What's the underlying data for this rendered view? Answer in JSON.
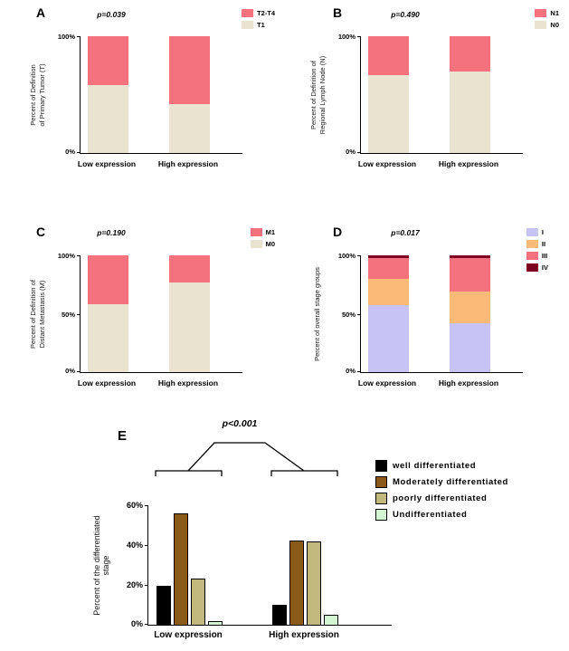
{
  "chart_data": [
    {
      "panel_label": "A",
      "type": "stacked_bar",
      "p_value": "p=0.039",
      "ylabel": "Percent of Definition of Primary Tumor (T)",
      "ylabel_lines": [
        "Percent of Definition",
        "of Primary Tumor (T)"
      ],
      "categories": [
        "Low expression",
        "High expression"
      ],
      "series": [
        {
          "name": "T1",
          "color": "#E9E3CF",
          "values": [
            58,
            42
          ]
        },
        {
          "name": "T2-T4",
          "color": "#F4717E",
          "values": [
            42,
            58
          ]
        }
      ],
      "legend": [
        {
          "label": "T2-T4",
          "color": "#F4717E"
        },
        {
          "label": "T1",
          "color": "#E9E3CF"
        }
      ],
      "ylim": [
        0,
        100
      ],
      "ytick_labels": [
        "100%",
        "0%"
      ],
      "legend_position": "top-right",
      "grid": false
    },
    {
      "panel_label": "B",
      "type": "stacked_bar",
      "p_value": "p=0.490",
      "ylabel": "Percent of Definition of Regional Lymph Node (N)",
      "ylabel_lines": [
        "Percent of Definition of",
        "Regional Lymph Node (N)"
      ],
      "categories": [
        "Low expression",
        "High expression"
      ],
      "series": [
        {
          "name": "N0",
          "color": "#E9E3CF",
          "values": [
            67,
            70
          ]
        },
        {
          "name": "N1",
          "color": "#F4717E",
          "values": [
            33,
            30
          ]
        }
      ],
      "legend": [
        {
          "label": "N1",
          "color": "#F4717E"
        },
        {
          "label": "N0",
          "color": "#E9E3CF"
        }
      ],
      "ylim": [
        0,
        100
      ],
      "ytick_labels": [
        "100%",
        "0%"
      ],
      "legend_position": "top-right",
      "grid": false
    },
    {
      "panel_label": "C",
      "type": "stacked_bar",
      "p_value": "p=0.190",
      "ylabel": "Percent of Definition of Distant Metastasis (M)",
      "ylabel_lines": [
        "Percent of Definition of",
        "Distant Metastasis (M)"
      ],
      "categories": [
        "Low expression",
        "High expression"
      ],
      "series": [
        {
          "name": "M0",
          "color": "#E9E3CF",
          "values": [
            58,
            77
          ]
        },
        {
          "name": "M1",
          "color": "#F4717E",
          "values": [
            42,
            23
          ]
        }
      ],
      "legend": [
        {
          "label": "M1",
          "color": "#F4717E"
        },
        {
          "label": "M0",
          "color": "#E9E3CF"
        }
      ],
      "ylim": [
        0,
        100
      ],
      "ytick_labels": [
        "100%",
        "50%",
        "0%"
      ],
      "legend_position": "top-right",
      "grid": false
    },
    {
      "panel_label": "D",
      "type": "stacked_bar",
      "p_value": "p=0.017",
      "ylabel": "Percent of overall stage groups",
      "ylabel_lines": [
        "Percent of overall stage groups"
      ],
      "categories": [
        "Low expression",
        "High expression"
      ],
      "series": [
        {
          "name": "I",
          "color": "#C7C3F4",
          "values": [
            57,
            42
          ]
        },
        {
          "name": "II",
          "color": "#FBBB78",
          "values": [
            23,
            27
          ]
        },
        {
          "name": "III",
          "color": "#F4717E",
          "values": [
            18,
            29
          ]
        },
        {
          "name": "IV",
          "color": "#7E0020",
          "values": [
            2,
            2
          ]
        }
      ],
      "legend": [
        {
          "label": "I",
          "color": "#C7C3F4"
        },
        {
          "label": "II",
          "color": "#FBBB78"
        },
        {
          "label": "III",
          "color": "#F4717E"
        },
        {
          "label": "IV",
          "color": "#7E0020"
        }
      ],
      "ylim": [
        0,
        100
      ],
      "ytick_labels": [
        "100%",
        "50%",
        "0%"
      ],
      "legend_position": "top-right",
      "grid": false
    },
    {
      "panel_label": "E",
      "type": "grouped_bar",
      "p_value": "p<0.001",
      "ylabel": "Percent of the differentiated stage",
      "categories": [
        "Low expression",
        "High expression"
      ],
      "series": [
        {
          "name": "well differentiated",
          "color": "#000000",
          "values": [
            19.5,
            10
          ]
        },
        {
          "name": "Moderately differentiated",
          "color": "#8B5A18",
          "values": [
            56,
            42.5
          ]
        },
        {
          "name": "poorly differentiated",
          "color": "#C2B87D",
          "values": [
            23,
            42
          ]
        },
        {
          "name": "Undifferentiated",
          "color": "#D2F5D2",
          "values": [
            2,
            5
          ]
        }
      ],
      "legend": [
        {
          "label": "well differentiated",
          "color": "#000000"
        },
        {
          "label": "Moderately differentiated",
          "color": "#8B5A18"
        },
        {
          "label": "poorly differentiated",
          "color": "#C2B87D"
        },
        {
          "label": "Undifferentiated",
          "color": "#D2F5D2"
        }
      ],
      "ylim": [
        0,
        60
      ],
      "ytick_labels": [
        "60%",
        "40%",
        "20%",
        "0%"
      ],
      "legend_position": "right",
      "grid": false
    }
  ]
}
